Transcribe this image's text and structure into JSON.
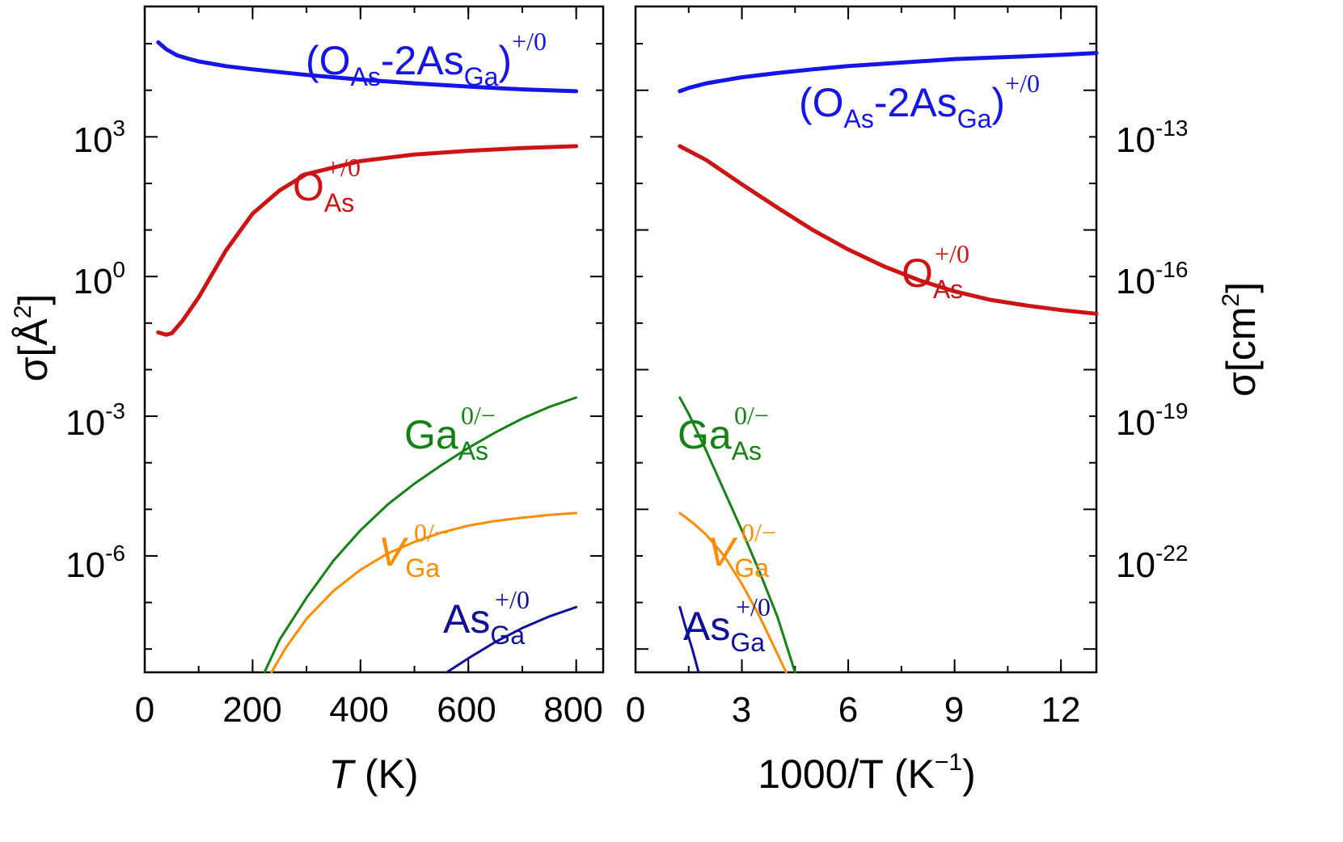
{
  "chart_data": [
    {
      "type": "line",
      "xlabel_italic": "T",
      "xlabel_rest": " (K)",
      "ylabel_sigma": "σ",
      "ylabel_open": "[Å",
      "ylabel_exp": "2",
      "ylabel_close": "]",
      "y_scale": "log",
      "xlim": [
        0,
        850
      ],
      "ylim_log10": [
        -8.5,
        5.8
      ],
      "x_ticks": [
        "0",
        "200",
        "400",
        "600",
        "800"
      ],
      "y_ticks": [
        {
          "base": "10",
          "exp": "3",
          "log10": 3
        },
        {
          "base": "10",
          "exp": "0",
          "log10": 0
        },
        {
          "base": "10",
          "exp": "-3",
          "log10": -3
        },
        {
          "base": "10",
          "exp": "-6",
          "log10": -6
        }
      ],
      "series": [
        {
          "color": "#1515e8",
          "label_parts": [
            "(O",
            "As",
            "-2As",
            "Ga",
            ")",
            "+/0"
          ],
          "x": [
            25,
            30,
            40,
            60,
            80,
            100,
            150,
            200,
            300,
            400,
            500,
            600,
            700,
            800
          ],
          "log10_y": [
            5.03,
            4.98,
            4.88,
            4.75,
            4.68,
            4.62,
            4.52,
            4.45,
            4.33,
            4.23,
            4.15,
            4.08,
            4.02,
            3.98
          ]
        },
        {
          "color": "#cc1414",
          "label_parts": [
            "O",
            "As",
            "+/0"
          ],
          "x": [
            25,
            40,
            50,
            70,
            100,
            150,
            200,
            250,
            300,
            400,
            500,
            600,
            700,
            800
          ],
          "log10_y": [
            -1.2,
            -1.25,
            -1.22,
            -0.95,
            -0.45,
            0.55,
            1.35,
            1.85,
            2.2,
            2.48,
            2.62,
            2.7,
            2.76,
            2.8
          ]
        },
        {
          "color": "#148214",
          "label_parts": [
            "Ga",
            "As",
            "0/−"
          ],
          "x": [
            222,
            250,
            300,
            350,
            400,
            450,
            500,
            550,
            600,
            650,
            700,
            750,
            800
          ],
          "log10_y": [
            -8.5,
            -7.8,
            -6.9,
            -6.1,
            -5.45,
            -4.9,
            -4.45,
            -4.05,
            -3.68,
            -3.35,
            -3.05,
            -2.8,
            -2.6
          ]
        },
        {
          "color": "#ff8c00",
          "label_parts": [
            "V",
            "Ga",
            "0/−"
          ],
          "x": [
            235,
            260,
            300,
            350,
            400,
            450,
            500,
            550,
            600,
            650,
            700,
            750,
            800
          ],
          "log10_y": [
            -8.5,
            -8.0,
            -7.35,
            -6.75,
            -6.3,
            -5.95,
            -5.7,
            -5.5,
            -5.35,
            -5.25,
            -5.18,
            -5.12,
            -5.08
          ]
        },
        {
          "color": "#10109a",
          "label_parts": [
            "As",
            "Ga",
            "+/0"
          ],
          "x": [
            560,
            600,
            650,
            700,
            750,
            800
          ],
          "log10_y": [
            -8.5,
            -8.2,
            -7.85,
            -7.55,
            -7.3,
            -7.1
          ]
        }
      ]
    },
    {
      "type": "line",
      "xlabel_main": "1000/T (K",
      "xlabel_exp": "−1",
      "xlabel_close": ")",
      "ylabel_sigma": "σ",
      "ylabel_open": "[cm",
      "ylabel_exp": "2",
      "ylabel_close": "]",
      "y_scale": "log",
      "xlim": [
        0,
        13
      ],
      "ylim_log10_cm2": [
        -24.5,
        -10.2
      ],
      "x_ticks": [
        "0",
        "3",
        "6",
        "9",
        "12"
      ],
      "y_ticks": [
        {
          "base": "10",
          "exp": "-13",
          "log10": -13
        },
        {
          "base": "10",
          "exp": "-16",
          "log10": -16
        },
        {
          "base": "10",
          "exp": "-19",
          "log10": -19
        },
        {
          "base": "10",
          "exp": "-22",
          "log10": -22
        }
      ],
      "series": [
        {
          "color": "#1515e8",
          "label_parts": [
            "(O",
            "As",
            "-2As",
            "Ga",
            ")",
            "+/0"
          ],
          "x": [
            1.25,
            1.5,
            2,
            3,
            4,
            5,
            6,
            7,
            8,
            9,
            10,
            11,
            12,
            13
          ],
          "log10_y": [
            -12.02,
            -11.95,
            -11.85,
            -11.72,
            -11.63,
            -11.55,
            -11.48,
            -11.43,
            -11.38,
            -11.33,
            -11.3,
            -11.27,
            -11.24,
            -11.2
          ]
        },
        {
          "color": "#cc1414",
          "label_parts": [
            "O",
            "As",
            "+/0"
          ],
          "x": [
            1.25,
            2,
            3,
            4,
            5,
            6,
            7,
            8,
            9,
            10,
            11,
            12,
            13
          ],
          "log10_y": [
            -13.2,
            -13.5,
            -14.02,
            -14.52,
            -15.0,
            -15.42,
            -15.78,
            -16.08,
            -16.32,
            -16.5,
            -16.62,
            -16.72,
            -16.8
          ]
        },
        {
          "color": "#148214",
          "label_parts": [
            "Ga",
            "As",
            "0/−"
          ],
          "x": [
            1.25,
            1.5,
            2,
            2.5,
            3,
            3.5,
            4,
            4.5
          ],
          "log10_y": [
            -18.6,
            -18.95,
            -19.75,
            -20.6,
            -21.45,
            -22.35,
            -23.3,
            -24.5
          ]
        },
        {
          "color": "#ff8c00",
          "label_parts": [
            "V",
            "Ga",
            "0/−"
          ],
          "x": [
            1.25,
            1.6,
            2,
            2.5,
            3,
            3.5,
            4,
            4.25
          ],
          "log10_y": [
            -21.08,
            -21.28,
            -21.55,
            -22.0,
            -22.6,
            -23.3,
            -24.1,
            -24.5
          ]
        },
        {
          "color": "#10109a",
          "label_parts": [
            "As",
            "Ga",
            "+/0"
          ],
          "x": [
            1.25,
            1.4,
            1.6,
            1.78
          ],
          "log10_y": [
            -23.1,
            -23.5,
            -24.0,
            -24.5
          ]
        }
      ]
    }
  ]
}
